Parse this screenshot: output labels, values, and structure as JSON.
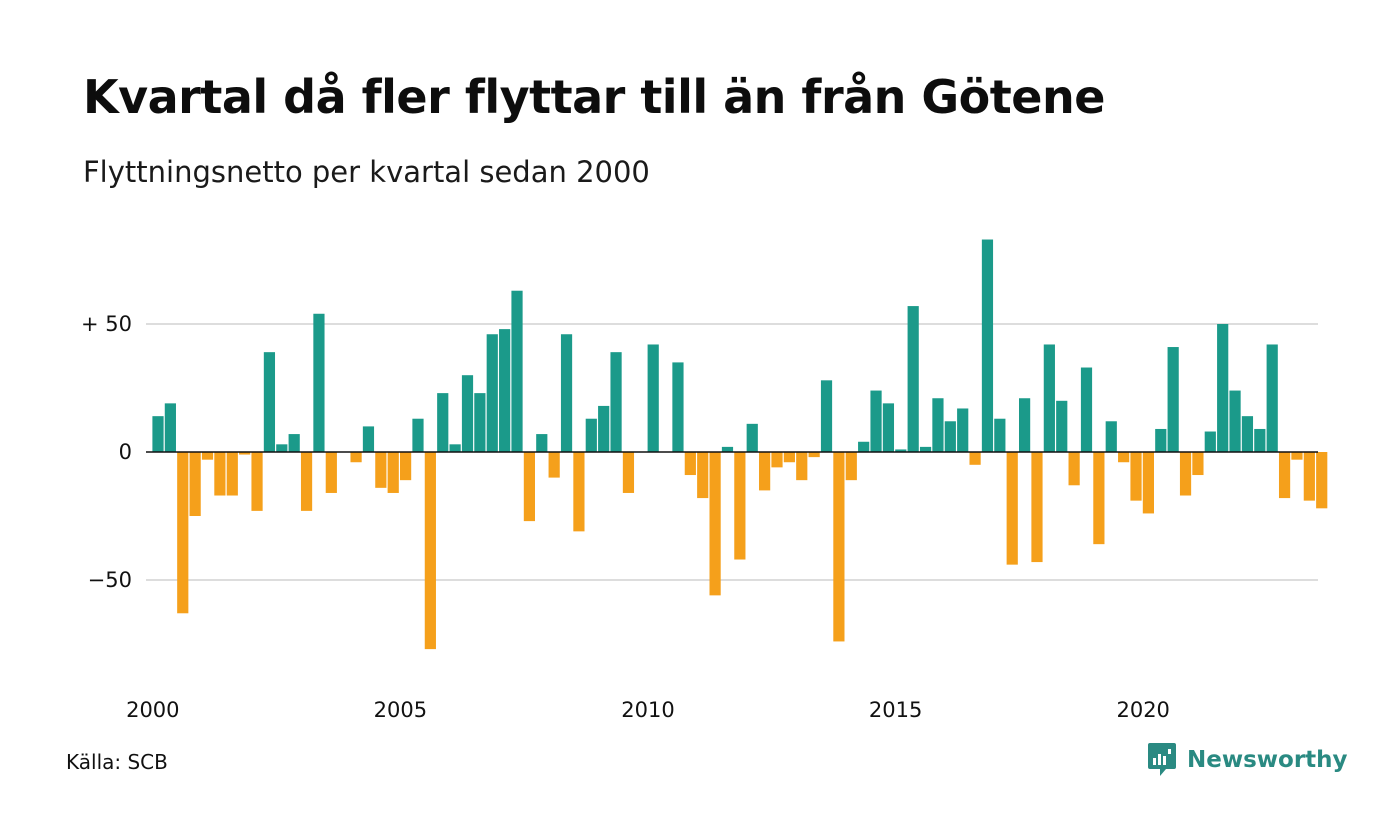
{
  "title": "Kvartal då fler flyttar till än från Götene",
  "subtitle": "Flyttningsnetto per kvartal sedan 2000",
  "source": "Källa: SCB",
  "brand": {
    "name": "Newsworthy",
    "icon": "newsworthy-logo-icon"
  },
  "colors": {
    "positive": "#1b9a8a",
    "negative": "#f5a01b",
    "grid": "#dddddd",
    "baseline": "#111111",
    "brand": "#2a8a82"
  },
  "chart_data": {
    "type": "bar",
    "title": "Kvartal då fler flyttar till än från Götene",
    "subtitle": "Flyttningsnetto per kvartal sedan 2000",
    "xlabel": "",
    "ylabel": "",
    "ylim": [
      -85,
      85
    ],
    "grid": true,
    "y_ticks": [
      {
        "value": 50,
        "label": "+ 50"
      },
      {
        "value": 0,
        "label": "0"
      },
      {
        "value": -50,
        "label": "−50"
      }
    ],
    "x_ticks": [
      {
        "year": 2000,
        "label": "2000"
      },
      {
        "year": 2005,
        "label": "2005"
      },
      {
        "year": 2010,
        "label": "2010"
      },
      {
        "year": 2015,
        "label": "2015"
      },
      {
        "year": 2020,
        "label": "2020"
      }
    ],
    "start_year": 2000,
    "values": [
      14,
      19,
      -63,
      -25,
      -3,
      -17,
      -17,
      -1,
      -23,
      39,
      3,
      7,
      -23,
      54,
      -16,
      0,
      -4,
      10,
      -14,
      -16,
      -11,
      13,
      -77,
      23,
      3,
      30,
      23,
      46,
      48,
      63,
      -27,
      7,
      -10,
      46,
      -31,
      13,
      18,
      39,
      -16,
      0,
      42,
      0,
      35,
      -9,
      -18,
      -56,
      2,
      -42,
      11,
      -15,
      -6,
      -4,
      -11,
      -2,
      28,
      -74,
      -11,
      4,
      24,
      19,
      1,
      57,
      2,
      21,
      12,
      17,
      -5,
      83,
      13,
      -44,
      21,
      -43,
      42,
      20,
      -13,
      33,
      -36,
      12,
      -4,
      -19,
      -24,
      9,
      41,
      -17,
      -9,
      8,
      50,
      24,
      14,
      9,
      42,
      -18,
      -3,
      -19,
      -22
    ]
  }
}
